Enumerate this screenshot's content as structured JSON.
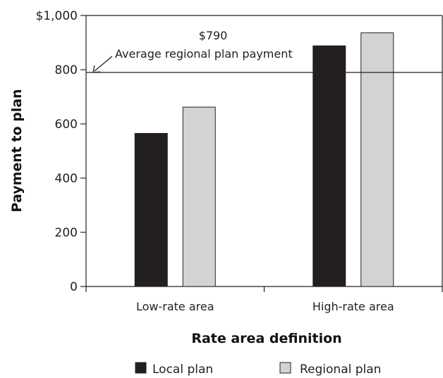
{
  "chart_data": {
    "type": "bar",
    "categories": [
      "Low-rate area",
      "High-rate area"
    ],
    "series": [
      {
        "name": "Local plan",
        "values": [
          565,
          888
        ],
        "color": "#231f20"
      },
      {
        "name": "Regional plan",
        "values": [
          662,
          936
        ],
        "color": "#d3d3d3"
      }
    ],
    "ylim": [
      0,
      1000
    ],
    "yticks": [
      0,
      200,
      400,
      600,
      800,
      1000
    ],
    "ytick_labels": [
      "0",
      "200",
      "400",
      "600",
      "800",
      "$1,000"
    ],
    "xlabel": "Rate area definition",
    "ylabel": "Payment to plan",
    "reference_line": {
      "value": 790,
      "value_label": "$790",
      "label": "Average regional plan payment"
    },
    "legend_position": "bottom",
    "grid": false
  }
}
